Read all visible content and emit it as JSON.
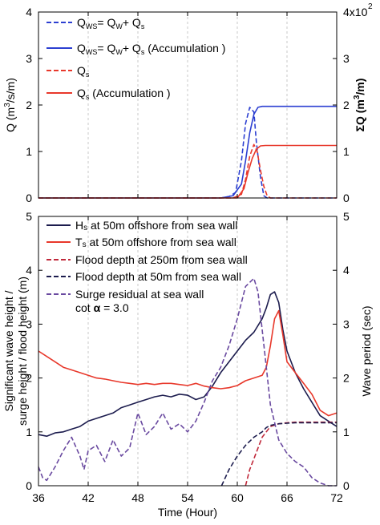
{
  "chart_data": [
    {
      "type": "line",
      "panel": "top",
      "ylabel_left": "Q (m3/s/m)",
      "ylabel_right": "ΣQ (m3/m)",
      "right_axis_multiplier": "4x10²",
      "x_range": [
        36,
        72
      ],
      "ylim_left": [
        0,
        4
      ],
      "ylim_right": [
        0,
        4
      ],
      "yticks_left": [
        "0",
        "1",
        "2",
        "3",
        "4"
      ],
      "yticks_right": [
        "0",
        "1",
        "2",
        "3",
        ""
      ],
      "grid": "vertical dashed at x ticks",
      "legend_placement": "top-left",
      "legend": [
        {
          "label": "Qws= Qw+ Qs",
          "color": "#2c3fd1",
          "dash": "dashed"
        },
        {
          "label": "Qws= Qw+ Qs (Accumulation )",
          "color": "#2c3fd1",
          "dash": "solid"
        },
        {
          "label": "Qs",
          "color": "#e8382b",
          "dash": "dashed"
        },
        {
          "label": "Qs (Accumulation )",
          "color": "#e8382b",
          "dash": "solid"
        }
      ],
      "series": [
        {
          "name": "Qws= Qw+ Qs",
          "color": "#2c3fd1",
          "dash": "dashed",
          "x": [
            36,
            58,
            59,
            59.8,
            60.5,
            61,
            61.5,
            62,
            62.3,
            62.8,
            63.2,
            63.6,
            72
          ],
          "y": [
            0,
            0,
            0.03,
            0.12,
            0.8,
            1.6,
            1.95,
            1.85,
            1.2,
            0.45,
            0.05,
            0,
            0
          ]
        },
        {
          "name": "Qws= Qw+ Qs (Accumulation )",
          "color": "#2c3fd1",
          "dash": "solid",
          "x": [
            36,
            58,
            59.5,
            60.5,
            61,
            61.5,
            62,
            62.5,
            63,
            63.6,
            72
          ],
          "y": [
            0,
            0,
            0.05,
            0.3,
            0.8,
            1.4,
            1.8,
            1.95,
            1.97,
            1.97,
            1.97
          ]
        },
        {
          "name": "Qs",
          "color": "#e8382b",
          "dash": "dashed",
          "x": [
            36,
            59.5,
            60.5,
            61,
            61.5,
            62,
            62.4,
            62.8,
            63.2,
            63.6,
            64,
            72
          ],
          "y": [
            0,
            0,
            0.08,
            0.4,
            0.9,
            1.15,
            1.0,
            0.6,
            0.25,
            0.05,
            0,
            0
          ]
        },
        {
          "name": "Qs (Accumulation )",
          "color": "#e8382b",
          "dash": "solid",
          "x": [
            36,
            60,
            60.8,
            61.3,
            61.8,
            62.3,
            62.8,
            63.4,
            72
          ],
          "y": [
            0,
            0,
            0.2,
            0.55,
            0.85,
            1.05,
            1.12,
            1.13,
            1.13
          ]
        }
      ]
    },
    {
      "type": "line",
      "panel": "bottom",
      "xlabel": "Time (Hour)",
      "ylabel_left": "Significant wave height / surge height / flood height (m)",
      "ylabel_right": "Wave period (sec)",
      "x_range": [
        36,
        72
      ],
      "xticks": [
        "36",
        "42",
        "48",
        "54",
        "60",
        "66",
        "72"
      ],
      "ylim_left": [
        0,
        5
      ],
      "ylim_right": [
        0,
        5
      ],
      "yticks": [
        "0",
        "1",
        "2",
        "3",
        "4",
        "5"
      ],
      "grid": "vertical dashed at x ticks",
      "legend_placement": "top-left",
      "legend": [
        {
          "label": "Hs at 50m offshore from sea wall",
          "color": "#1c1c4e",
          "dash": "solid"
        },
        {
          "label": "Ts at 50m offshore from sea wall",
          "color": "#e8382b",
          "dash": "solid"
        },
        {
          "label": "Flood depth at 250m from sea wall",
          "color": "#c0283a",
          "dash": "dashed"
        },
        {
          "label": "Flood depth at 50m from sea wall",
          "color": "#1c1c4e",
          "dash": "dashed"
        },
        {
          "label": "Surge residual at sea wall",
          "color": "#6a4aa0",
          "dash": "dashed"
        }
      ],
      "annotation": "cot α = 3.0",
      "series": [
        {
          "name": "Hs at 50m offshore from sea wall",
          "color": "#1c1c4e",
          "dash": "solid",
          "x": [
            36,
            37,
            38,
            39,
            40,
            41,
            42,
            43,
            44,
            45,
            46,
            47,
            48,
            49,
            50,
            51,
            52,
            53,
            54,
            55,
            56,
            57,
            58,
            59,
            60,
            61,
            62,
            63,
            63.5,
            64,
            64.5,
            65,
            65.5,
            66,
            67,
            68,
            69,
            70,
            71,
            72
          ],
          "y": [
            0.95,
            0.92,
            0.98,
            1.0,
            1.05,
            1.1,
            1.2,
            1.25,
            1.3,
            1.35,
            1.45,
            1.5,
            1.55,
            1.6,
            1.65,
            1.68,
            1.65,
            1.7,
            1.68,
            1.6,
            1.65,
            1.85,
            2.1,
            2.3,
            2.5,
            2.7,
            2.85,
            3.1,
            3.3,
            3.55,
            3.6,
            3.4,
            2.9,
            2.5,
            2.1,
            1.8,
            1.55,
            1.3,
            1.2,
            1.1
          ]
        },
        {
          "name": "Ts at 50m offshore from sea wall",
          "color": "#e8382b",
          "dash": "solid",
          "x": [
            36,
            37,
            38,
            39,
            40,
            41,
            42,
            43,
            44,
            45,
            46,
            47,
            48,
            49,
            50,
            51,
            52,
            53,
            54,
            55,
            56,
            57,
            58,
            59,
            60,
            61,
            62,
            63,
            63.5,
            64,
            64.5,
            65,
            65.5,
            66,
            67,
            68,
            69,
            70,
            71,
            72
          ],
          "y": [
            2.5,
            2.4,
            2.3,
            2.2,
            2.15,
            2.1,
            2.05,
            2.0,
            1.98,
            1.95,
            1.92,
            1.9,
            1.88,
            1.9,
            1.88,
            1.9,
            1.9,
            1.88,
            1.86,
            1.9,
            1.85,
            1.82,
            1.8,
            1.82,
            1.86,
            1.95,
            2.0,
            2.05,
            2.2,
            2.6,
            3.1,
            3.25,
            2.8,
            2.3,
            2.1,
            1.9,
            1.7,
            1.4,
            1.3,
            1.35
          ]
        },
        {
          "name": "Flood depth at 250m from sea wall",
          "color": "#c0283a",
          "dash": "dashed",
          "x": [
            61,
            61.5,
            62,
            63,
            64,
            65,
            66,
            67,
            68,
            69,
            70,
            71,
            72
          ],
          "y": [
            0,
            0.3,
            0.5,
            0.9,
            1.1,
            1.15,
            1.17,
            1.18,
            1.18,
            1.18,
            1.18,
            1.18,
            1.18
          ]
        },
        {
          "name": "Flood depth at 50m from sea wall",
          "color": "#1c1c4e",
          "dash": "dashed",
          "x": [
            58.1,
            59,
            60,
            61,
            62,
            63,
            63.5,
            64,
            65,
            66,
            67,
            68,
            69,
            70,
            71,
            72
          ],
          "y": [
            0,
            0.3,
            0.55,
            0.75,
            0.9,
            1.0,
            1.08,
            1.12,
            1.15,
            1.16,
            1.17,
            1.17,
            1.17,
            1.17,
            1.17,
            1.17
          ]
        },
        {
          "name": "Surge residual at sea wall",
          "color": "#6a4aa0",
          "dash": "dashed",
          "x": [
            36,
            36.5,
            37,
            38,
            39,
            40,
            41,
            41.5,
            42,
            43,
            44,
            45,
            46,
            47,
            48,
            49,
            50,
            51,
            52,
            53,
            54,
            55,
            56,
            57,
            58,
            59,
            60,
            61,
            62,
            62.5,
            63,
            63.5,
            64,
            65,
            66,
            67,
            68,
            69,
            70,
            71,
            72
          ],
          "y": [
            0.35,
            0.15,
            0.1,
            0.35,
            0.65,
            0.9,
            0.55,
            0.3,
            0.65,
            0.75,
            0.45,
            0.85,
            0.55,
            0.7,
            1.35,
            0.95,
            1.1,
            1.35,
            1.05,
            1.15,
            1.0,
            1.2,
            1.55,
            1.95,
            2.2,
            2.6,
            3.1,
            3.7,
            3.85,
            3.6,
            2.9,
            2.2,
            1.5,
            0.85,
            0.6,
            0.45,
            0.35,
            0.15,
            0.05,
            0,
            0
          ]
        }
      ]
    }
  ]
}
